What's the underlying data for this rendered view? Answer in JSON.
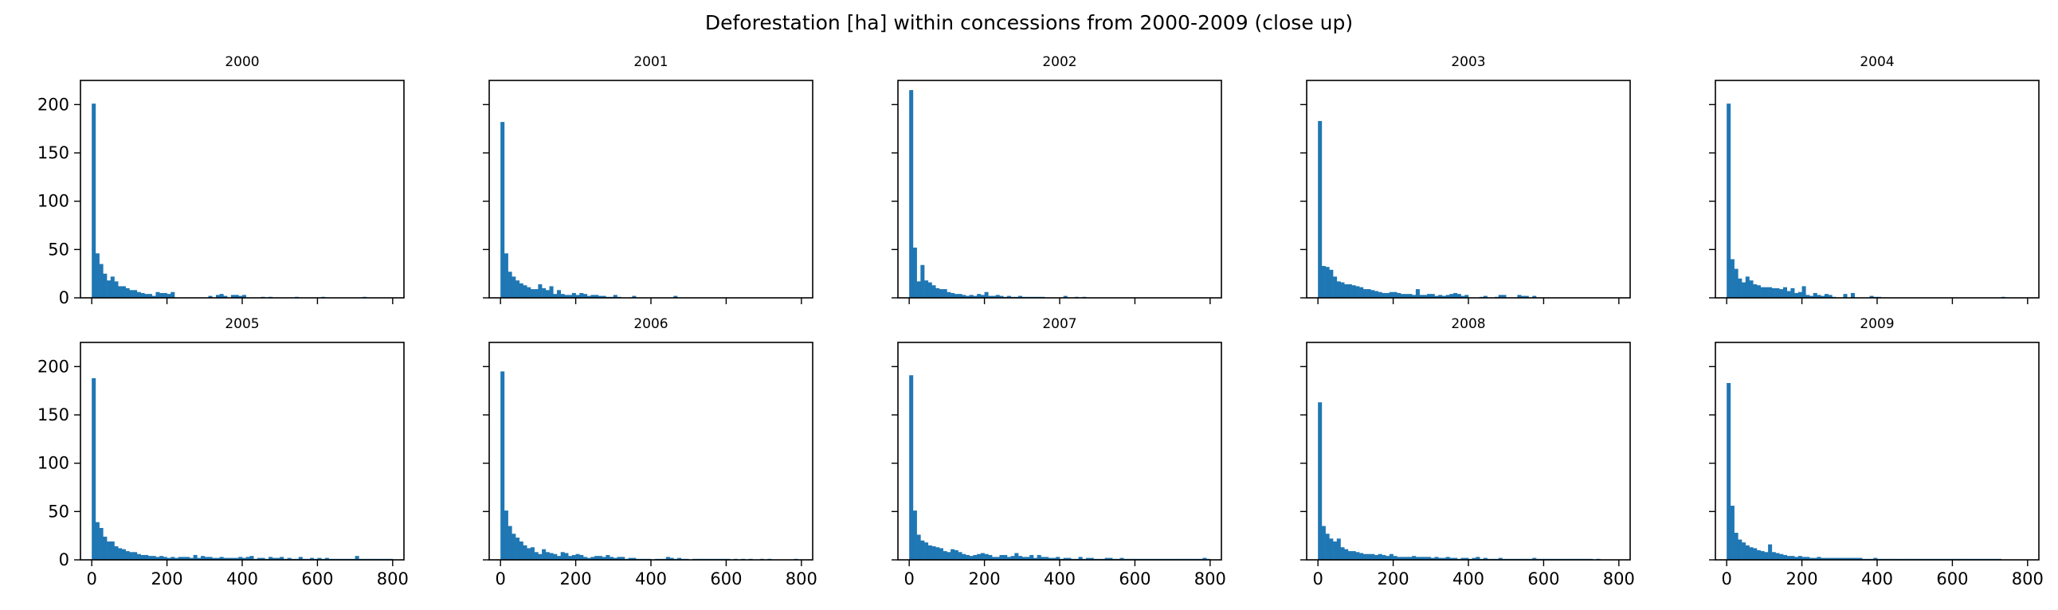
{
  "figure": {
    "title": "Deforestation [ha] within concessions from 2000-2009 (close up)"
  },
  "style": {
    "bar_color": "#1f77b4",
    "axes_color": "#000000",
    "background": "#ffffff"
  },
  "chart_data": [
    {
      "type": "bar",
      "title": "2000",
      "bin_width": 10,
      "xlim": [
        -30,
        830
      ],
      "ylim": [
        0,
        225
      ],
      "xticks": [
        0,
        200,
        400,
        600,
        800
      ],
      "yticks": [
        0,
        50,
        100,
        150,
        200
      ],
      "show_xtick_labels": false,
      "show_ytick_labels": true,
      "values": [
        201,
        46,
        35,
        25,
        18,
        22,
        17,
        12,
        12,
        10,
        8,
        8,
        6,
        5,
        4,
        4,
        2,
        6,
        5,
        5,
        4,
        6,
        0,
        0,
        0,
        0,
        0,
        0,
        0,
        0,
        0,
        2,
        0,
        3,
        4,
        2,
        0,
        3,
        3,
        2,
        3,
        0,
        0,
        0,
        0,
        1,
        0,
        1,
        0,
        0,
        0,
        0,
        0,
        0,
        1,
        0,
        0,
        0,
        0,
        0,
        0,
        1,
        0,
        0,
        0,
        0,
        0,
        0,
        0,
        0,
        0,
        0,
        1,
        0,
        0,
        0,
        0,
        0,
        0,
        0
      ]
    },
    {
      "type": "bar",
      "title": "2001",
      "bin_width": 10,
      "xlim": [
        -30,
        830
      ],
      "ylim": [
        0,
        225
      ],
      "xticks": [
        0,
        200,
        400,
        600,
        800
      ],
      "yticks": [
        0,
        50,
        100,
        150,
        200
      ],
      "show_xtick_labels": false,
      "show_ytick_labels": false,
      "values": [
        182,
        46,
        27,
        22,
        18,
        15,
        13,
        11,
        9,
        9,
        14,
        10,
        8,
        12,
        4,
        8,
        4,
        3,
        3,
        5,
        3,
        5,
        4,
        2,
        3,
        3,
        2,
        2,
        1,
        1,
        3,
        1,
        0,
        0,
        0,
        2,
        0,
        0,
        0,
        0,
        0,
        0,
        0,
        0,
        0,
        0,
        2,
        0,
        0,
        0,
        0,
        0,
        0,
        0,
        0,
        0,
        0,
        0,
        0,
        0,
        0,
        0,
        0,
        0,
        0,
        0,
        0,
        0,
        0,
        0,
        0,
        0,
        0,
        0,
        0,
        0,
        0,
        0,
        0,
        0
      ]
    },
    {
      "type": "bar",
      "title": "2002",
      "bin_width": 10,
      "xlim": [
        -30,
        830
      ],
      "ylim": [
        0,
        225
      ],
      "xticks": [
        0,
        200,
        400,
        600,
        800
      ],
      "yticks": [
        0,
        50,
        100,
        150,
        200
      ],
      "show_xtick_labels": false,
      "show_ytick_labels": false,
      "values": [
        215,
        52,
        17,
        34,
        18,
        16,
        13,
        10,
        9,
        9,
        6,
        5,
        4,
        4,
        3,
        2,
        3,
        2,
        4,
        3,
        6,
        2,
        2,
        3,
        2,
        1,
        2,
        1,
        1,
        2,
        1,
        1,
        1,
        1,
        1,
        1,
        0,
        0,
        0,
        0,
        0,
        2,
        0,
        0,
        1,
        0,
        1,
        0,
        0,
        0,
        0,
        0,
        0,
        0,
        0,
        0,
        0,
        0,
        0,
        0,
        0,
        0,
        0,
        0,
        0,
        0,
        0,
        0,
        0,
        0,
        0,
        0,
        0,
        0,
        0,
        0,
        0,
        0,
        0,
        0
      ]
    },
    {
      "type": "bar",
      "title": "2003",
      "bin_width": 10,
      "xlim": [
        -30,
        830
      ],
      "ylim": [
        0,
        225
      ],
      "xticks": [
        0,
        200,
        400,
        600,
        800
      ],
      "yticks": [
        0,
        50,
        100,
        150,
        200
      ],
      "show_xtick_labels": false,
      "show_ytick_labels": false,
      "values": [
        183,
        33,
        32,
        29,
        22,
        17,
        16,
        14,
        14,
        13,
        12,
        11,
        9,
        9,
        8,
        7,
        6,
        5,
        5,
        6,
        6,
        5,
        4,
        4,
        4,
        3,
        9,
        3,
        3,
        4,
        4,
        2,
        3,
        2,
        3,
        4,
        5,
        4,
        2,
        3,
        0,
        0,
        0,
        1,
        2,
        0,
        0,
        1,
        3,
        3,
        0,
        0,
        0,
        3,
        2,
        2,
        0,
        2,
        0,
        0,
        0,
        0,
        0,
        0,
        0,
        0,
        0,
        0,
        0,
        0,
        0,
        0,
        0,
        0,
        0,
        0,
        0,
        0,
        0,
        0
      ]
    },
    {
      "type": "bar",
      "title": "2004",
      "bin_width": 10,
      "xlim": [
        -30,
        830
      ],
      "ylim": [
        0,
        225
      ],
      "xticks": [
        0,
        200,
        400,
        600,
        800
      ],
      "yticks": [
        0,
        50,
        100,
        150,
        200
      ],
      "show_xtick_labels": false,
      "show_ytick_labels": false,
      "values": [
        201,
        40,
        30,
        20,
        16,
        22,
        18,
        14,
        13,
        11,
        11,
        11,
        10,
        10,
        9,
        11,
        7,
        10,
        5,
        6,
        12,
        3,
        2,
        5,
        3,
        2,
        4,
        3,
        1,
        0,
        0,
        4,
        0,
        5,
        0,
        0,
        0,
        0,
        2,
        1,
        1,
        0,
        0,
        0,
        0,
        0,
        0,
        0,
        0,
        0,
        0,
        0,
        0,
        0,
        0,
        0,
        0,
        0,
        0,
        0,
        0,
        0,
        0,
        0,
        0,
        0,
        0,
        0,
        0,
        0,
        0,
        0,
        0,
        1,
        0,
        0,
        0,
        0,
        0,
        0
      ]
    },
    {
      "type": "bar",
      "title": "2005",
      "bin_width": 10,
      "xlim": [
        -30,
        830
      ],
      "ylim": [
        0,
        225
      ],
      "xticks": [
        0,
        200,
        400,
        600,
        800
      ],
      "yticks": [
        0,
        50,
        100,
        150,
        200
      ],
      "show_xtick_labels": true,
      "show_ytick_labels": true,
      "values": [
        188,
        39,
        33,
        24,
        19,
        19,
        14,
        12,
        11,
        9,
        8,
        8,
        6,
        5,
        5,
        4,
        4,
        3,
        4,
        3,
        2,
        3,
        2,
        3,
        3,
        3,
        2,
        5,
        2,
        4,
        3,
        3,
        2,
        2,
        3,
        2,
        2,
        2,
        2,
        3,
        2,
        3,
        4,
        1,
        2,
        2,
        1,
        3,
        2,
        2,
        3,
        1,
        2,
        1,
        1,
        3,
        1,
        1,
        2,
        1,
        2,
        1,
        2,
        1,
        1,
        1,
        1,
        1,
        1,
        1,
        4,
        1,
        1,
        1,
        1,
        1,
        1,
        1,
        1,
        1
      ]
    },
    {
      "type": "bar",
      "title": "2006",
      "bin_width": 10,
      "xlim": [
        -30,
        830
      ],
      "ylim": [
        0,
        225
      ],
      "xticks": [
        0,
        200,
        400,
        600,
        800
      ],
      "yticks": [
        0,
        50,
        100,
        150,
        200
      ],
      "show_xtick_labels": true,
      "show_ytick_labels": false,
      "values": [
        195,
        51,
        35,
        27,
        23,
        19,
        15,
        12,
        13,
        8,
        6,
        11,
        8,
        7,
        6,
        4,
        8,
        7,
        4,
        5,
        6,
        5,
        3,
        2,
        3,
        4,
        4,
        3,
        5,
        3,
        2,
        3,
        3,
        1,
        2,
        2,
        1,
        1,
        1,
        1,
        0,
        1,
        1,
        1,
        3,
        2,
        1,
        2,
        1,
        1,
        0,
        1,
        1,
        1,
        1,
        1,
        1,
        1,
        1,
        1,
        1,
        0,
        1,
        0,
        1,
        0,
        1,
        0,
        0,
        1,
        0,
        1,
        0,
        0,
        0,
        0,
        0,
        0,
        1,
        0
      ]
    },
    {
      "type": "bar",
      "title": "2007",
      "bin_width": 10,
      "xlim": [
        -30,
        830
      ],
      "ylim": [
        0,
        225
      ],
      "xticks": [
        0,
        200,
        400,
        600,
        800
      ],
      "yticks": [
        0,
        50,
        100,
        150,
        200
      ],
      "show_xtick_labels": true,
      "show_ytick_labels": false,
      "values": [
        191,
        51,
        26,
        20,
        18,
        15,
        14,
        13,
        12,
        9,
        8,
        11,
        10,
        8,
        6,
        5,
        4,
        5,
        6,
        7,
        6,
        5,
        3,
        3,
        5,
        5,
        3,
        4,
        7,
        4,
        3,
        3,
        5,
        2,
        5,
        3,
        3,
        2,
        2,
        3,
        1,
        2,
        2,
        1,
        1,
        3,
        1,
        2,
        2,
        1,
        1,
        1,
        2,
        2,
        1,
        1,
        2,
        1,
        1,
        1,
        1,
        1,
        1,
        1,
        1,
        1,
        1,
        1,
        1,
        1,
        1,
        1,
        1,
        1,
        1,
        1,
        1,
        1,
        2,
        1
      ]
    },
    {
      "type": "bar",
      "title": "2008",
      "bin_width": 10,
      "xlim": [
        -30,
        830
      ],
      "ylim": [
        0,
        225
      ],
      "xticks": [
        0,
        200,
        400,
        600,
        800
      ],
      "yticks": [
        0,
        50,
        100,
        150,
        200
      ],
      "show_xtick_labels": true,
      "show_ytick_labels": false,
      "values": [
        163,
        35,
        27,
        22,
        19,
        22,
        13,
        11,
        9,
        9,
        8,
        7,
        6,
        6,
        6,
        5,
        6,
        5,
        4,
        6,
        4,
        3,
        3,
        3,
        3,
        4,
        3,
        3,
        3,
        3,
        2,
        3,
        2,
        2,
        3,
        2,
        2,
        1,
        2,
        2,
        1,
        2,
        3,
        1,
        2,
        1,
        1,
        1,
        2,
        1,
        1,
        1,
        1,
        1,
        1,
        1,
        1,
        2,
        1,
        1,
        1,
        1,
        1,
        1,
        1,
        1,
        1,
        1,
        1,
        1,
        1,
        1,
        1,
        0,
        1,
        0,
        0,
        0,
        0,
        0
      ]
    },
    {
      "type": "bar",
      "title": "2009",
      "bin_width": 10,
      "xlim": [
        -30,
        830
      ],
      "ylim": [
        0,
        225
      ],
      "xticks": [
        0,
        200,
        400,
        600,
        800
      ],
      "yticks": [
        0,
        50,
        100,
        150,
        200
      ],
      "show_xtick_labels": true,
      "show_ytick_labels": false,
      "values": [
        183,
        56,
        28,
        21,
        18,
        15,
        13,
        12,
        10,
        9,
        8,
        16,
        8,
        7,
        6,
        5,
        4,
        4,
        3,
        4,
        3,
        3,
        2,
        2,
        3,
        2,
        2,
        2,
        2,
        2,
        2,
        2,
        2,
        2,
        2,
        2,
        1,
        1,
        1,
        2,
        1,
        1,
        1,
        1,
        1,
        1,
        1,
        1,
        1,
        1,
        1,
        1,
        1,
        1,
        1,
        1,
        1,
        1,
        1,
        1,
        1,
        1,
        1,
        1,
        1,
        1,
        1,
        1,
        1,
        1,
        1,
        1,
        1,
        0,
        0,
        0,
        0,
        0,
        0,
        0
      ]
    }
  ]
}
